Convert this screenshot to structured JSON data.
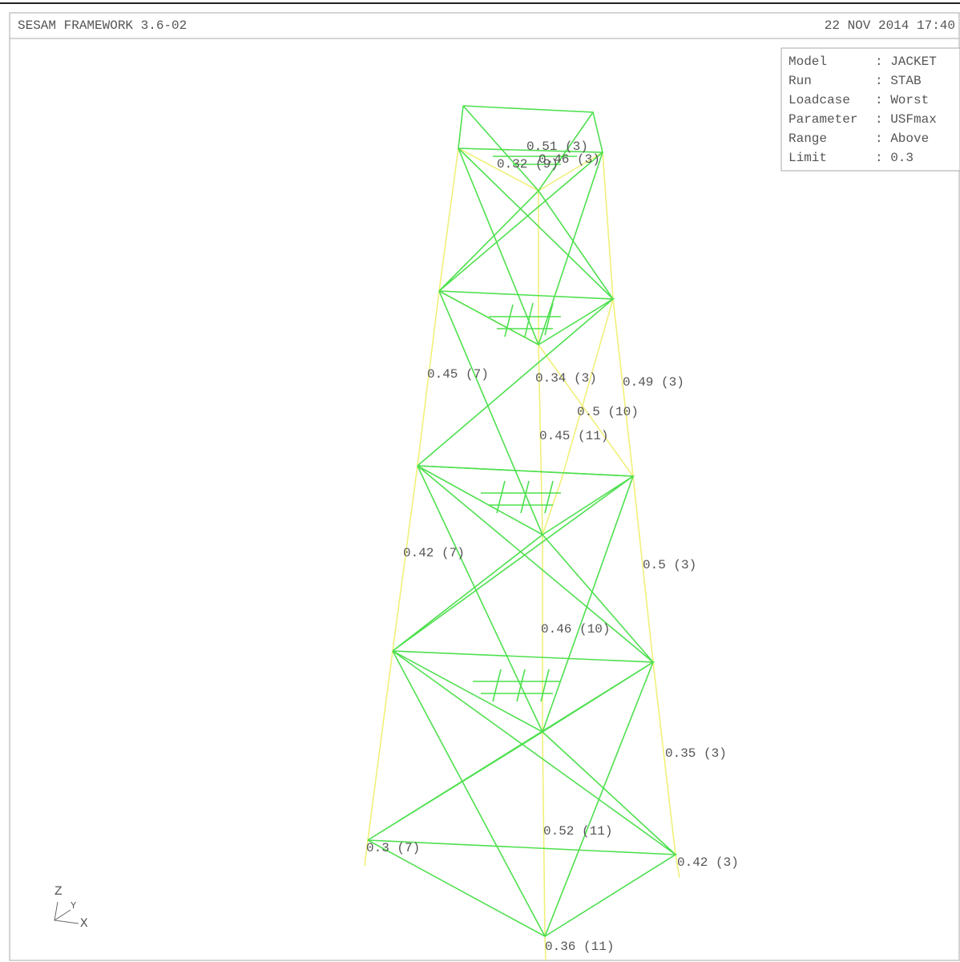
{
  "header": {
    "left": "SESAM FRAMEWORK 3.6-02",
    "right": "22 NOV 2014 17:40"
  },
  "info": [
    [
      "Model",
      ": JACKET"
    ],
    [
      "Run",
      ": STAB"
    ],
    [
      "Loadcase",
      ": Worst"
    ],
    [
      "Parameter",
      ": USFmax"
    ],
    [
      "Range",
      ": Above"
    ],
    [
      "Limit",
      ": 0.3"
    ]
  ],
  "member_labels": [
    "0.51 (3)",
    "0.46 (3)",
    "0.32 (9)",
    "0.45 (7)",
    "0.34 (3)",
    "0.49 (3)",
    "0.5 (10)",
    "0.45 (11)",
    "0.42 (7)",
    "0.5 (3)",
    "0.46 (10)",
    "0.35 (3)",
    "0.52 (11)",
    "0.3 (7)",
    "0.42 (3)",
    "0.36 (11)"
  ],
  "axes": {
    "z": "Z",
    "y": "Y",
    "x": "X"
  }
}
